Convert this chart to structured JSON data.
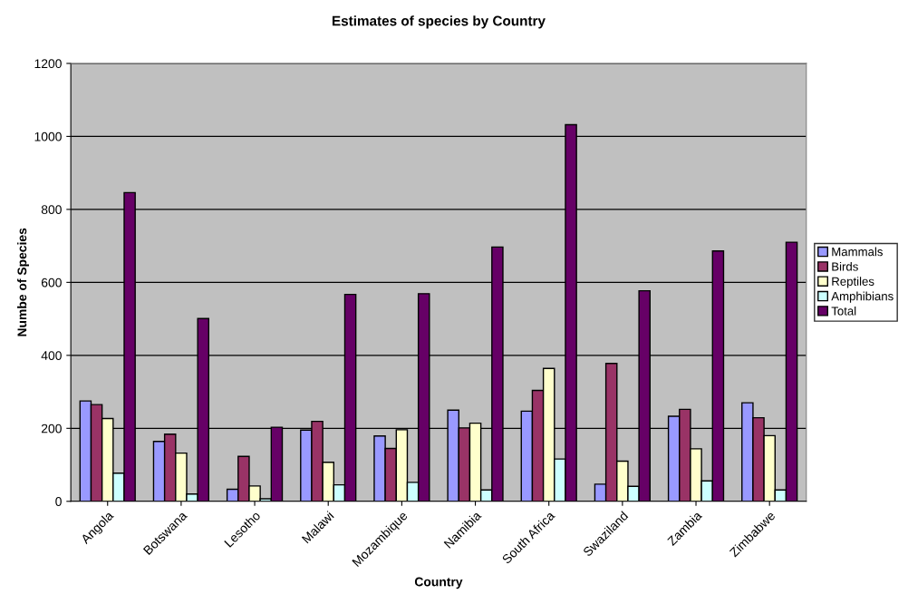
{
  "chart_data": {
    "type": "bar",
    "title": "Estimates of species by Country",
    "xlabel": "Country",
    "ylabel": "Numbe of Species",
    "categories": [
      "Angola",
      "Botswana",
      "Lesotho",
      "Malawi",
      "Mozambique",
      "Namibia",
      "South Africa",
      "Swaziland",
      "Zambia",
      "Zimbabwe"
    ],
    "series": [
      {
        "name": "Mammals",
        "color": "#9999ff",
        "values": [
          275,
          164,
          33,
          195,
          179,
          250,
          247,
          47,
          233,
          270
        ]
      },
      {
        "name": "Birds",
        "color": "#993366",
        "values": [
          265,
          184,
          123,
          219,
          145,
          201,
          304,
          378,
          252,
          229
        ]
      },
      {
        "name": "Reptiles",
        "color": "#ffffcc",
        "values": [
          227,
          132,
          42,
          107,
          196,
          214,
          364,
          110,
          144,
          180
        ]
      },
      {
        "name": "Amphibians",
        "color": "#ccffff",
        "values": [
          77,
          20,
          7,
          45,
          52,
          31,
          116,
          41,
          56,
          31
        ]
      },
      {
        "name": "Total",
        "color": "#660066",
        "values": [
          846,
          501,
          203,
          567,
          569,
          697,
          1032,
          577,
          686,
          710
        ]
      }
    ],
    "ylim": [
      0,
      1200
    ],
    "yticks": [
      0,
      200,
      400,
      600,
      800,
      1000,
      1200
    ],
    "grid": "y",
    "legend": "right"
  }
}
